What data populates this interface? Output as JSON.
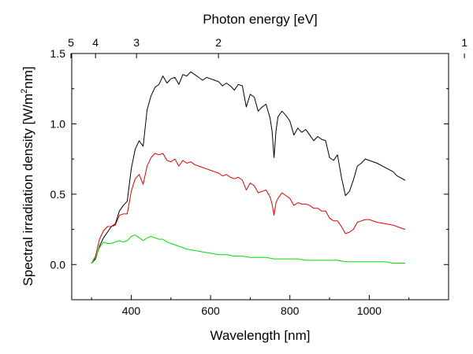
{
  "chart_data": {
    "type": "line",
    "title": "",
    "xlabel": "Wavelength [nm]",
    "ylabel": "Spectral irradiation density [W/m",
    "ylabel_sup": "2",
    "ylabel_tail": "nm]",
    "top_xlabel": "Photon energy [eV]",
    "xlim": [
      250,
      1200
    ],
    "ylim": [
      -0.25,
      1.5
    ],
    "x_ticks": [
      400,
      600,
      800,
      1000
    ],
    "x_ticklabels": [
      "400",
      "600",
      "800",
      "1000"
    ],
    "y_ticks": [
      0.0,
      0.5,
      1.0,
      1.5
    ],
    "y_ticklabels": [
      "0.0",
      "0.5",
      "1.0",
      "1.5"
    ],
    "top_ticks_ev": [
      5,
      4,
      3,
      2,
      1
    ],
    "top_ticklabels": [
      "5",
      "4",
      "3",
      "2",
      "1"
    ],
    "grid": false,
    "legend": "none",
    "series": [
      {
        "color": "#000000",
        "x": [
          300,
          310,
          320,
          330,
          340,
          350,
          360,
          370,
          380,
          390,
          400,
          410,
          420,
          430,
          440,
          450,
          460,
          470,
          480,
          490,
          500,
          510,
          520,
          530,
          540,
          550,
          560,
          570,
          580,
          590,
          600,
          610,
          620,
          630,
          640,
          650,
          660,
          670,
          680,
          690,
          700,
          710,
          720,
          730,
          740,
          750,
          755,
          760,
          765,
          770,
          780,
          790,
          800,
          810,
          820,
          830,
          840,
          850,
          860,
          870,
          880,
          890,
          900,
          910,
          920,
          930,
          940,
          950,
          960,
          970,
          980,
          990,
          1000,
          1020,
          1040,
          1060,
          1070,
          1090
        ],
        "y": [
          0.01,
          0.04,
          0.13,
          0.19,
          0.23,
          0.27,
          0.29,
          0.38,
          0.42,
          0.45,
          0.68,
          0.82,
          0.88,
          0.84,
          1.1,
          1.2,
          1.26,
          1.28,
          1.34,
          1.29,
          1.32,
          1.33,
          1.28,
          1.35,
          1.34,
          1.37,
          1.35,
          1.33,
          1.31,
          1.33,
          1.32,
          1.31,
          1.3,
          1.27,
          1.29,
          1.27,
          1.24,
          1.28,
          1.27,
          1.12,
          1.21,
          1.19,
          1.09,
          1.12,
          1.14,
          1.04,
          0.95,
          0.76,
          0.95,
          1.05,
          1.09,
          1.06,
          1.02,
          0.92,
          0.97,
          0.94,
          0.96,
          0.92,
          0.88,
          0.91,
          0.89,
          0.88,
          0.76,
          0.74,
          0.78,
          0.62,
          0.49,
          0.52,
          0.6,
          0.7,
          0.72,
          0.75,
          0.74,
          0.72,
          0.69,
          0.66,
          0.63,
          0.6
        ]
      },
      {
        "color": "#dd0000",
        "x": [
          300,
          310,
          320,
          330,
          340,
          350,
          360,
          370,
          380,
          390,
          400,
          410,
          420,
          430,
          440,
          450,
          460,
          470,
          480,
          490,
          500,
          510,
          520,
          530,
          540,
          550,
          560,
          570,
          580,
          590,
          600,
          610,
          620,
          630,
          640,
          650,
          660,
          670,
          680,
          690,
          700,
          710,
          720,
          730,
          740,
          750,
          755,
          760,
          765,
          770,
          780,
          790,
          800,
          810,
          820,
          830,
          840,
          850,
          860,
          870,
          880,
          890,
          900,
          910,
          920,
          930,
          940,
          950,
          960,
          970,
          980,
          990,
          1000,
          1020,
          1040,
          1060,
          1070,
          1090
        ],
        "y": [
          0.01,
          0.06,
          0.18,
          0.24,
          0.27,
          0.27,
          0.28,
          0.35,
          0.36,
          0.36,
          0.52,
          0.61,
          0.64,
          0.57,
          0.7,
          0.76,
          0.79,
          0.78,
          0.79,
          0.74,
          0.73,
          0.75,
          0.7,
          0.74,
          0.72,
          0.73,
          0.71,
          0.7,
          0.69,
          0.68,
          0.67,
          0.66,
          0.65,
          0.63,
          0.64,
          0.62,
          0.61,
          0.62,
          0.6,
          0.53,
          0.58,
          0.56,
          0.51,
          0.52,
          0.53,
          0.48,
          0.43,
          0.35,
          0.44,
          0.47,
          0.51,
          0.49,
          0.47,
          0.42,
          0.44,
          0.43,
          0.43,
          0.42,
          0.4,
          0.4,
          0.38,
          0.38,
          0.33,
          0.31,
          0.31,
          0.27,
          0.22,
          0.23,
          0.25,
          0.3,
          0.31,
          0.32,
          0.32,
          0.3,
          0.29,
          0.28,
          0.27,
          0.25
        ]
      },
      {
        "color": "#00dd00",
        "x": [
          300,
          310,
          320,
          330,
          340,
          350,
          360,
          370,
          380,
          390,
          400,
          410,
          420,
          430,
          440,
          450,
          460,
          470,
          480,
          490,
          500,
          520,
          540,
          560,
          580,
          600,
          620,
          640,
          660,
          680,
          700,
          720,
          740,
          760,
          780,
          800,
          820,
          840,
          860,
          880,
          900,
          920,
          940,
          960,
          980,
          1000,
          1020,
          1040,
          1060,
          1090
        ],
        "y": [
          0.01,
          0.05,
          0.12,
          0.16,
          0.15,
          0.15,
          0.16,
          0.17,
          0.16,
          0.17,
          0.2,
          0.21,
          0.19,
          0.17,
          0.19,
          0.2,
          0.19,
          0.18,
          0.18,
          0.16,
          0.15,
          0.13,
          0.11,
          0.1,
          0.09,
          0.08,
          0.07,
          0.07,
          0.06,
          0.06,
          0.05,
          0.05,
          0.05,
          0.04,
          0.04,
          0.04,
          0.04,
          0.03,
          0.03,
          0.03,
          0.03,
          0.03,
          0.02,
          0.02,
          0.02,
          0.02,
          0.02,
          0.02,
          0.01,
          0.01
        ]
      }
    ]
  }
}
